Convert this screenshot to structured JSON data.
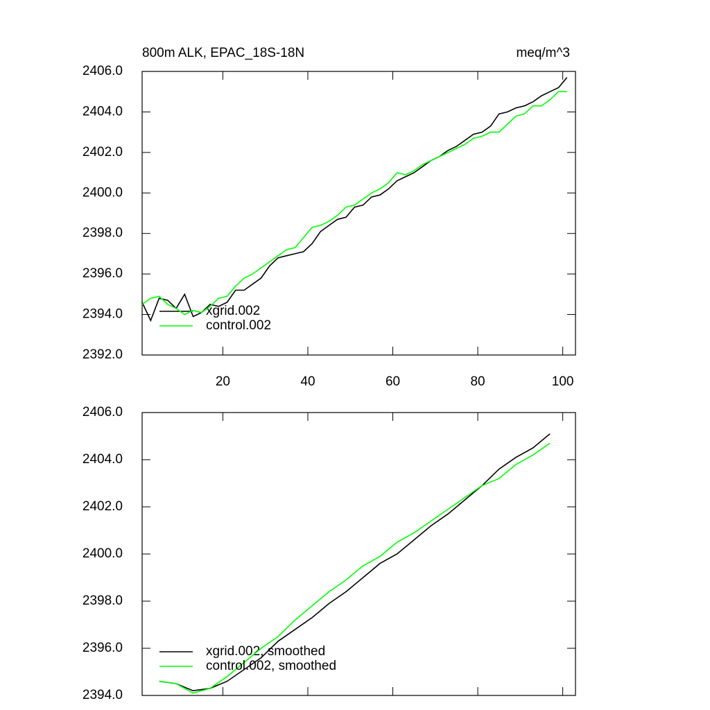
{
  "chart_data": [
    {
      "type": "line",
      "title": "800m ALK, EPAC_18S-18N",
      "units": "meq/m^3",
      "x": [
        1,
        3,
        5,
        7,
        9,
        11,
        13,
        15,
        17,
        19,
        21,
        23,
        25,
        27,
        29,
        31,
        33,
        35,
        37,
        39,
        41,
        43,
        45,
        47,
        49,
        51,
        53,
        55,
        57,
        59,
        61,
        63,
        65,
        67,
        69,
        71,
        73,
        75,
        77,
        79,
        81,
        83,
        85,
        87,
        89,
        91,
        93,
        95,
        97,
        99,
        101
      ],
      "series": [
        {
          "name": "xgrid.002",
          "color": "#000000",
          "values": [
            2394.6,
            2393.7,
            2394.8,
            2394.7,
            2394.3,
            2395.0,
            2393.9,
            2394.1,
            2394.5,
            2394.4,
            2394.6,
            2395.2,
            2395.2,
            2395.5,
            2395.8,
            2396.4,
            2396.8,
            2396.9,
            2397.0,
            2397.1,
            2397.5,
            2398.1,
            2398.4,
            2398.7,
            2398.8,
            2399.3,
            2399.4,
            2399.8,
            2399.9,
            2400.2,
            2400.6,
            2400.8,
            2401.0,
            2401.3,
            2401.6,
            2401.8,
            2402.1,
            2402.3,
            2402.6,
            2402.9,
            2403.0,
            2403.3,
            2403.9,
            2404.0,
            2404.2,
            2404.3,
            2404.5,
            2404.8,
            2405.0,
            2405.2,
            2405.7
          ]
        },
        {
          "name": "control.002",
          "color": "#00ff00",
          "values": [
            2394.5,
            2394.8,
            2394.9,
            2394.5,
            2394.3,
            2394.0,
            2394.2,
            2394.1,
            2394.4,
            2394.8,
            2394.9,
            2395.4,
            2395.8,
            2396.0,
            2396.3,
            2396.6,
            2396.9,
            2397.2,
            2397.3,
            2397.8,
            2398.3,
            2398.4,
            2398.6,
            2398.9,
            2399.3,
            2399.4,
            2399.7,
            2400.0,
            2400.2,
            2400.5,
            2401.0,
            2400.9,
            2401.1,
            2401.4,
            2401.6,
            2401.8,
            2402.0,
            2402.2,
            2402.4,
            2402.7,
            2402.8,
            2403.0,
            2403.0,
            2403.4,
            2403.8,
            2403.9,
            2404.3,
            2404.3,
            2404.6,
            2405.0,
            2405.0
          ]
        }
      ],
      "xlim": [
        1,
        103
      ],
      "xticks": [
        20,
        40,
        60,
        80,
        100
      ],
      "xtick_labels": true,
      "ylim": [
        2392,
        2406
      ],
      "yticks": [
        {
          "value": 2392,
          "label": "2392.0"
        },
        {
          "value": 2394,
          "label": "2394.0"
        },
        {
          "value": 2396,
          "label": "2396.0"
        },
        {
          "value": 2398,
          "label": "2398.0"
        },
        {
          "value": 2400,
          "label": "2400.0"
        },
        {
          "value": 2402,
          "label": "2402.0"
        },
        {
          "value": 2404,
          "label": "2404.0"
        },
        {
          "value": 2406,
          "label": "2406.0"
        }
      ],
      "legend": "lower left"
    },
    {
      "type": "line",
      "x": [
        5,
        9,
        13,
        17,
        21,
        25,
        29,
        33,
        37,
        41,
        45,
        49,
        53,
        57,
        61,
        65,
        69,
        73,
        77,
        81,
        85,
        89,
        93,
        97
      ],
      "series": [
        {
          "name": "xgrid.002, smoothed",
          "color": "#000000",
          "values": [
            2394.6,
            2394.5,
            2394.2,
            2394.3,
            2394.6,
            2395.1,
            2395.6,
            2396.3,
            2396.8,
            2397.3,
            2397.9,
            2398.4,
            2399.0,
            2399.6,
            2400.0,
            2400.6,
            2401.2,
            2401.7,
            2402.3,
            2402.9,
            2403.6,
            2404.1,
            2404.5,
            2405.1
          ]
        },
        {
          "name": "control.002, smoothed",
          "color": "#00ff00",
          "values": [
            2394.6,
            2394.5,
            2394.1,
            2394.3,
            2394.8,
            2395.4,
            2396.0,
            2396.5,
            2397.2,
            2397.8,
            2398.4,
            2398.9,
            2399.5,
            2399.9,
            2400.5,
            2400.9,
            2401.4,
            2401.9,
            2402.4,
            2402.9,
            2403.2,
            2403.8,
            2404.2,
            2404.7
          ]
        }
      ],
      "xlim": [
        1,
        103
      ],
      "xticks": [
        20,
        40,
        60,
        80,
        100
      ],
      "xtick_labels": false,
      "ylim": [
        2394,
        2406
      ],
      "yticks": [
        {
          "value": 2394,
          "label": "2394.0"
        },
        {
          "value": 2396,
          "label": "2396.0"
        },
        {
          "value": 2398,
          "label": "2398.0"
        },
        {
          "value": 2400,
          "label": "2400.0"
        },
        {
          "value": 2402,
          "label": "2402.0"
        },
        {
          "value": 2404,
          "label": "2404.0"
        },
        {
          "value": 2406,
          "label": "2406.0"
        }
      ],
      "legend": "lower left"
    }
  ]
}
